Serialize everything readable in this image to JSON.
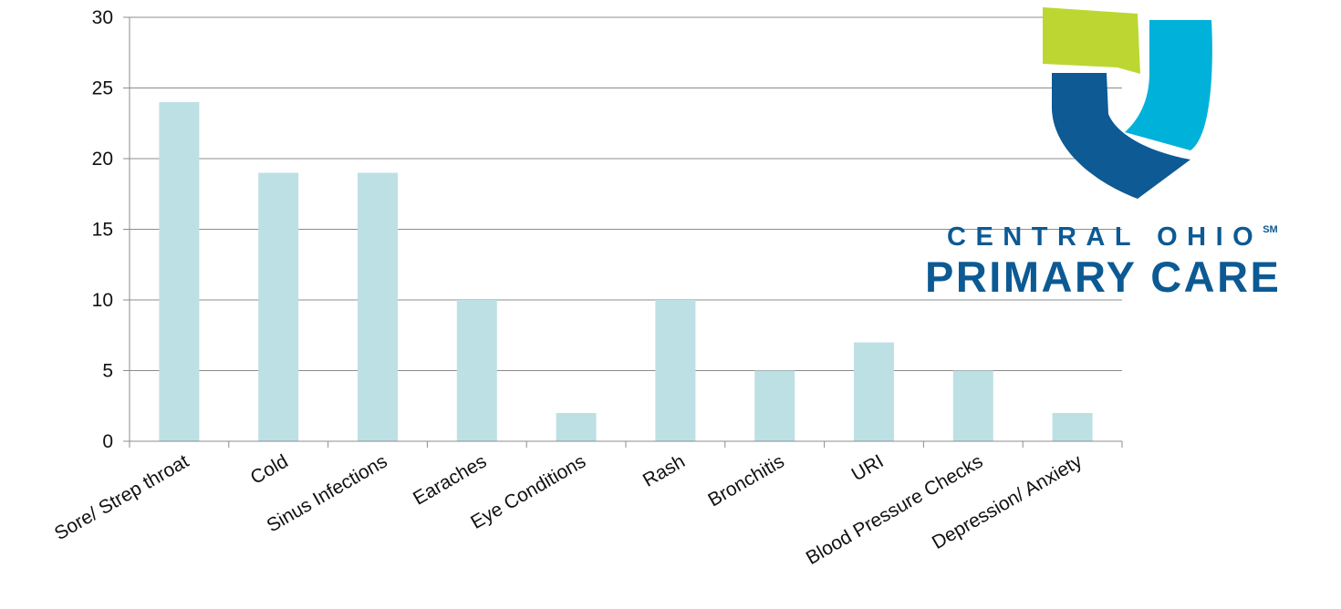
{
  "chart_data": {
    "type": "bar",
    "categories": [
      "Sore/ Strep throat",
      "Cold",
      "Sinus Infections",
      "Earaches",
      "Eye Conditions",
      "Rash",
      "Bronchitis",
      "URI",
      "Blood Pressure Checks",
      "Depression/ Anxiety"
    ],
    "values": [
      24,
      19,
      19,
      10,
      2,
      10,
      5,
      7,
      5,
      2
    ],
    "ylim": [
      0,
      30
    ],
    "yticks": [
      0,
      5,
      10,
      15,
      20,
      25,
      30
    ],
    "grid": true,
    "bar_color": "#bde0e4",
    "grid_color": "#8c8c8c",
    "title": "",
    "xlabel": "",
    "ylabel": ""
  },
  "logo": {
    "line1": "CENTRAL OHIO",
    "mark": "SM",
    "line2": "PRIMARY CARE",
    "colors": {
      "lime": "#bdd632",
      "cyan": "#00b1d9",
      "navy": "#0d5a94"
    }
  }
}
